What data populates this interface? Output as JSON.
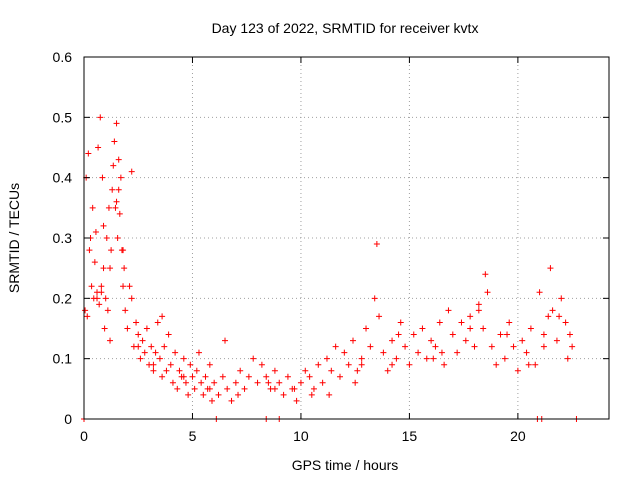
{
  "chart_data": {
    "type": "scatter",
    "title": "Day 123 of 2022, SRMTID for receiver kvtx",
    "xlabel": "GPS time / hours",
    "ylabel": "SRMTID / TECUs",
    "xlim": [
      0,
      24.2
    ],
    "ylim": [
      0,
      0.6
    ],
    "x_ticks": [
      0,
      5,
      10,
      15,
      20
    ],
    "x_tick_labels": [
      "0",
      "5",
      "10",
      "15",
      "20"
    ],
    "y_ticks": [
      0,
      0.1,
      0.2,
      0.3,
      0.4,
      0.5,
      0.6
    ],
    "y_tick_labels": [
      "0",
      "0.1",
      "0.2",
      "0.3",
      "0.4",
      "0.5",
      "0.6"
    ],
    "grid": true,
    "marker": "plus",
    "series": [
      {
        "name": "kvtx",
        "color": "#ff0000",
        "x": [
          0.05,
          0.2,
          0.3,
          0.35,
          0.4,
          0.45,
          0.5,
          0.55,
          0.6,
          0.65,
          0.7,
          0.75,
          0.8,
          0.85,
          0.9,
          0.95,
          1.0,
          1.05,
          1.1,
          1.15,
          1.2,
          1.25,
          1.3,
          1.35,
          1.4,
          1.45,
          1.5,
          1.55,
          1.6,
          1.65,
          1.7,
          1.75,
          1.8,
          1.85,
          1.9,
          2.0,
          2.1,
          2.2,
          2.3,
          2.4,
          2.5,
          2.6,
          2.7,
          2.8,
          2.9,
          3.0,
          3.1,
          3.2,
          3.3,
          3.4,
          3.5,
          3.6,
          3.7,
          3.8,
          3.9,
          4.0,
          4.1,
          4.2,
          4.3,
          4.4,
          4.5,
          4.6,
          4.7,
          4.8,
          4.9,
          5.0,
          5.1,
          5.2,
          5.3,
          5.4,
          5.5,
          5.6,
          5.7,
          5.8,
          5.9,
          6.0,
          6.2,
          6.4,
          6.6,
          6.8,
          7.0,
          7.2,
          7.4,
          7.6,
          7.8,
          8.0,
          8.2,
          8.4,
          8.6,
          8.8,
          9.0,
          9.2,
          9.4,
          9.6,
          9.8,
          10.0,
          10.2,
          10.4,
          10.6,
          10.8,
          11.0,
          11.2,
          11.4,
          11.6,
          11.8,
          12.0,
          12.2,
          12.4,
          12.6,
          12.8,
          13.0,
          13.2,
          13.4,
          13.5,
          13.6,
          13.8,
          14.0,
          14.2,
          14.4,
          14.6,
          14.8,
          15.0,
          15.2,
          15.4,
          15.6,
          15.8,
          16.0,
          16.2,
          16.4,
          16.6,
          16.8,
          17.0,
          17.2,
          17.4,
          17.6,
          17.8,
          18.0,
          18.2,
          18.4,
          18.5,
          18.6,
          18.8,
          19.0,
          19.2,
          19.4,
          19.6,
          19.8,
          20.0,
          20.2,
          20.4,
          20.6,
          20.8,
          21.0,
          21.2,
          21.4,
          21.5,
          21.6,
          21.8,
          22.0,
          22.2,
          22.4,
          22.5,
          0.1,
          0.25,
          0.6,
          0.9,
          1.2,
          1.5,
          1.8,
          2.5,
          3.2,
          4.6,
          5.8,
          7.1,
          8.5,
          9.7,
          11.3,
          12.8,
          14.5,
          16.1,
          17.8,
          19.5,
          21.2,
          22.3,
          0.15,
          0.8,
          1.6,
          2.2,
          3.6,
          6.5,
          8.8,
          10.5,
          12.5,
          14.2,
          16.5,
          18.2,
          20.5,
          21.9,
          0.0,
          6.1,
          8.4,
          9.0,
          20.9,
          21.1,
          22.7
        ],
        "y": [
          0.18,
          0.44,
          0.3,
          0.22,
          0.35,
          0.2,
          0.26,
          0.31,
          0.21,
          0.45,
          0.19,
          0.5,
          0.22,
          0.4,
          0.25,
          0.15,
          0.2,
          0.3,
          0.18,
          0.35,
          0.13,
          0.28,
          0.38,
          0.42,
          0.46,
          0.35,
          0.49,
          0.3,
          0.38,
          0.34,
          0.4,
          0.28,
          0.22,
          0.25,
          0.18,
          0.15,
          0.22,
          0.2,
          0.12,
          0.16,
          0.14,
          0.1,
          0.13,
          0.11,
          0.15,
          0.09,
          0.12,
          0.08,
          0.11,
          0.16,
          0.1,
          0.07,
          0.12,
          0.08,
          0.14,
          0.09,
          0.06,
          0.11,
          0.05,
          0.08,
          0.07,
          0.1,
          0.06,
          0.04,
          0.09,
          0.07,
          0.05,
          0.08,
          0.11,
          0.06,
          0.04,
          0.07,
          0.05,
          0.09,
          0.03,
          0.06,
          0.04,
          0.07,
          0.05,
          0.03,
          0.06,
          0.08,
          0.05,
          0.07,
          0.1,
          0.06,
          0.09,
          0.07,
          0.05,
          0.08,
          0.06,
          0.04,
          0.07,
          0.05,
          0.03,
          0.06,
          0.08,
          0.07,
          0.05,
          0.09,
          0.06,
          0.1,
          0.08,
          0.12,
          0.07,
          0.11,
          0.09,
          0.13,
          0.08,
          0.1,
          0.15,
          0.12,
          0.2,
          0.29,
          0.17,
          0.11,
          0.08,
          0.13,
          0.1,
          0.16,
          0.12,
          0.09,
          0.14,
          0.11,
          0.15,
          0.1,
          0.13,
          0.12,
          0.16,
          0.09,
          0.18,
          0.14,
          0.11,
          0.16,
          0.13,
          0.17,
          0.12,
          0.19,
          0.15,
          0.24,
          0.21,
          0.12,
          0.09,
          0.14,
          0.1,
          0.16,
          0.12,
          0.08,
          0.13,
          0.11,
          0.15,
          0.09,
          0.21,
          0.14,
          0.17,
          0.25,
          0.18,
          0.13,
          0.2,
          0.16,
          0.14,
          0.12,
          0.4,
          0.28,
          0.2,
          0.32,
          0.25,
          0.36,
          0.28,
          0.12,
          0.09,
          0.07,
          0.05,
          0.04,
          0.06,
          0.05,
          0.04,
          0.09,
          0.14,
          0.1,
          0.15,
          0.14,
          0.12,
          0.1,
          0.17,
          0.21,
          0.43,
          0.41,
          0.17,
          0.13,
          0.05,
          0.04,
          0.06,
          0.09,
          0.11,
          0.18,
          0.09,
          0.17,
          0.0,
          0.0,
          0.0,
          0.0,
          0.0,
          0.0,
          0.0
        ]
      }
    ]
  }
}
